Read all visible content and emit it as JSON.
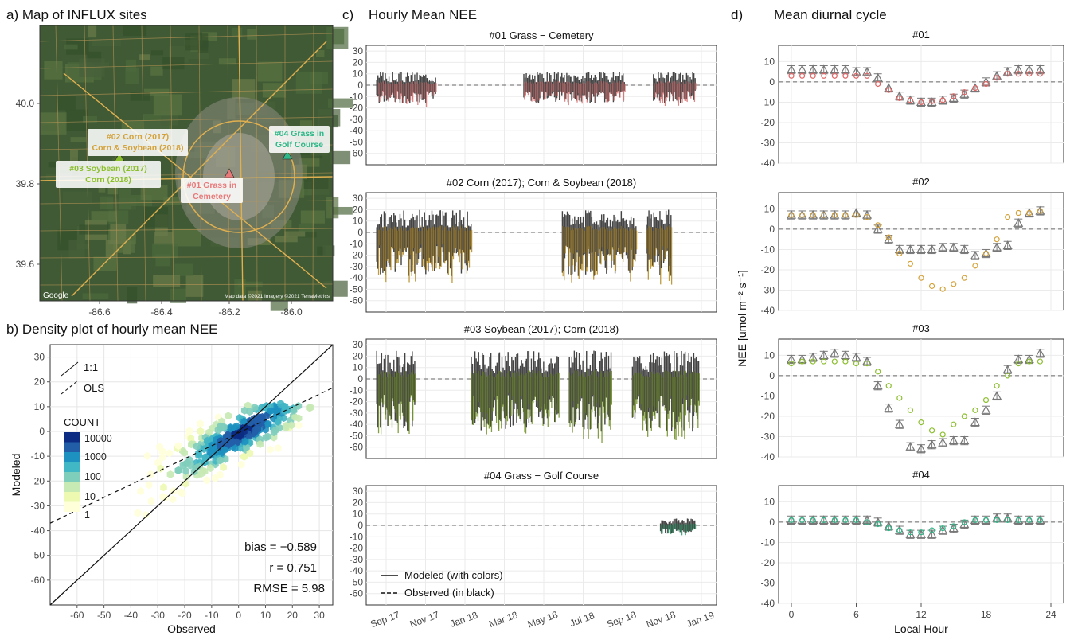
{
  "panel_a": {
    "title": "a) Map of INFLUX sites",
    "x_ticks": [
      "-86.6",
      "-86.4",
      "-86.2",
      "-86.0"
    ],
    "y_ticks": [
      "40.0",
      "39.8",
      "39.6"
    ],
    "sites": [
      {
        "label_lines": [
          "#02 Corn (2017)",
          "Corn & Soybean (2018)"
        ],
        "color": "#d4a23a"
      },
      {
        "label_lines": [
          "#03 Soybean (2017)",
          "Corn (2018)"
        ],
        "color": "#8cbf2e"
      },
      {
        "label_lines": [
          "#01 Grass in",
          "Cemetery"
        ],
        "color": "#e97a7a"
      },
      {
        "label_lines": [
          "#04 Grass in",
          "Golf Course"
        ],
        "color": "#2fb88a"
      }
    ],
    "attribution": "Map data ©2021 Imagery ©2021 TerraMetrics",
    "google": "Google"
  },
  "panel_b": {
    "title": "b) Density plot of hourly mean NEE",
    "xlabel": "Observed",
    "ylabel": "Modeled",
    "x_ticks": [
      "-60",
      "-50",
      "-40",
      "-30",
      "-20",
      "-10",
      "0",
      "10",
      "20",
      "30"
    ],
    "y_ticks": [
      "30",
      "20",
      "10",
      "0",
      "-10",
      "-20",
      "-30",
      "-40",
      "-50",
      "-60"
    ],
    "legend_lines": [
      "1:1",
      "OLS"
    ],
    "count_title": "COUNT",
    "count_labels": [
      "10000",
      "1000",
      "100",
      "10",
      "1"
    ],
    "stats": [
      "bias = −0.589",
      "r = 0.751",
      "RMSE = 5.98"
    ]
  },
  "panel_c": {
    "label": "c)",
    "title": "Hourly Mean NEE",
    "subtitles": [
      "#01 Grass − Cemetery",
      "#02 Corn (2017); Corn & Soybean (2018)",
      "#03 Soybean (2017); Corn (2018)",
      "#04 Grass − Golf Course"
    ],
    "y_ticks": [
      "30",
      "20",
      "10",
      "0",
      "-10",
      "-20",
      "-30",
      "-40",
      "-50",
      "-60"
    ],
    "x_ticks": [
      "Sep 17",
      "Nov 17",
      "Jan 18",
      "Mar 18",
      "May 18",
      "Jul 18",
      "Sep 18",
      "Nov 18",
      "Jan 19"
    ],
    "legend": [
      "Modeled (with colors)",
      "Observed (in black)"
    ],
    "colors": [
      "#d97373",
      "#b58a1f",
      "#6f8f24",
      "#2e9e6c"
    ]
  },
  "panel_d": {
    "label": "d)",
    "title": "Mean diurnal cycle",
    "subtitles": [
      "#01",
      "#02",
      "#03",
      "#04"
    ],
    "y_ticks": [
      "10",
      "0",
      "-10",
      "-20",
      "-30",
      "-40"
    ],
    "x_ticks": [
      "0",
      "6",
      "12",
      "18",
      "24"
    ],
    "xlabel": "Local Hour",
    "ylabel": "NEE [umol m⁻² s⁻¹]"
  },
  "chart_data": [
    {
      "type": "heatmap",
      "title": "b) Density plot of hourly mean NEE",
      "xlabel": "Observed",
      "ylabel": "Modeled",
      "xlim": [
        -70,
        35
      ],
      "ylim": [
        -70,
        35
      ],
      "stats": {
        "bias": -0.589,
        "r": 0.751,
        "RMSE": 5.98
      },
      "count_scale": [
        1,
        10,
        100,
        1000,
        10000
      ]
    },
    {
      "type": "line",
      "title": "Mean diurnal cycle",
      "xlabel": "Local Hour",
      "ylabel": "NEE [umol m-2 s-1]",
      "x": [
        0,
        1,
        2,
        3,
        4,
        5,
        6,
        7,
        8,
        9,
        10,
        11,
        12,
        13,
        14,
        15,
        16,
        17,
        18,
        19,
        20,
        21,
        22,
        23
      ],
      "series": [
        {
          "name": "#01",
          "modeled": [
            3,
            3,
            3,
            3,
            3,
            3,
            3,
            3,
            -1,
            -4,
            -8,
            -9,
            -10,
            -9.5,
            -9,
            -7,
            -5,
            -3,
            -1,
            2,
            4,
            4,
            4,
            4
          ],
          "observed": [
            6,
            6,
            6,
            6,
            6,
            6,
            5,
            5,
            2,
            -3,
            -7,
            -9,
            -10,
            -10,
            -9,
            -8,
            -6,
            -3,
            0,
            3,
            5,
            6,
            6,
            6
          ]
        },
        {
          "name": "#02",
          "modeled": [
            7,
            7,
            7,
            7,
            7,
            7,
            7,
            6,
            2,
            -4,
            -12,
            -17,
            -24,
            -28,
            -29.5,
            -27,
            -24,
            -18,
            -12,
            -5,
            6,
            8,
            8,
            9
          ],
          "observed": [
            7,
            7,
            7,
            7,
            7,
            7,
            8,
            7,
            0,
            -5,
            -10,
            -10,
            -10,
            -10,
            -9,
            -9,
            -10,
            -13,
            -12,
            -9,
            -8,
            3,
            8,
            9
          ]
        },
        {
          "name": "#03",
          "modeled": [
            6,
            7,
            7,
            7,
            7,
            7,
            6,
            6,
            2,
            -5,
            -11,
            -17,
            -23,
            -27,
            -29,
            -24,
            -20,
            -17,
            -12,
            -5,
            0,
            6,
            7,
            7
          ],
          "observed": [
            8,
            8,
            9,
            10,
            11,
            10,
            9,
            7,
            -5,
            -16,
            -24,
            -35,
            -36,
            -34,
            -33,
            -32,
            -32,
            -23,
            -17,
            -10,
            3,
            8,
            8,
            11
          ]
        },
        {
          "name": "#04",
          "modeled": [
            1,
            1,
            1,
            1,
            1,
            1,
            1,
            0,
            -1,
            -3,
            -4,
            -5,
            -5,
            -4,
            -3,
            -2,
            0,
            1,
            1,
            1,
            1,
            1,
            1,
            1
          ],
          "observed": [
            1,
            1,
            1,
            1,
            1,
            1,
            1,
            1,
            0,
            -2,
            -4,
            -6,
            -6,
            -6,
            -4,
            -3,
            -1,
            1,
            1,
            2,
            2,
            1,
            1,
            1
          ]
        }
      ]
    }
  ]
}
